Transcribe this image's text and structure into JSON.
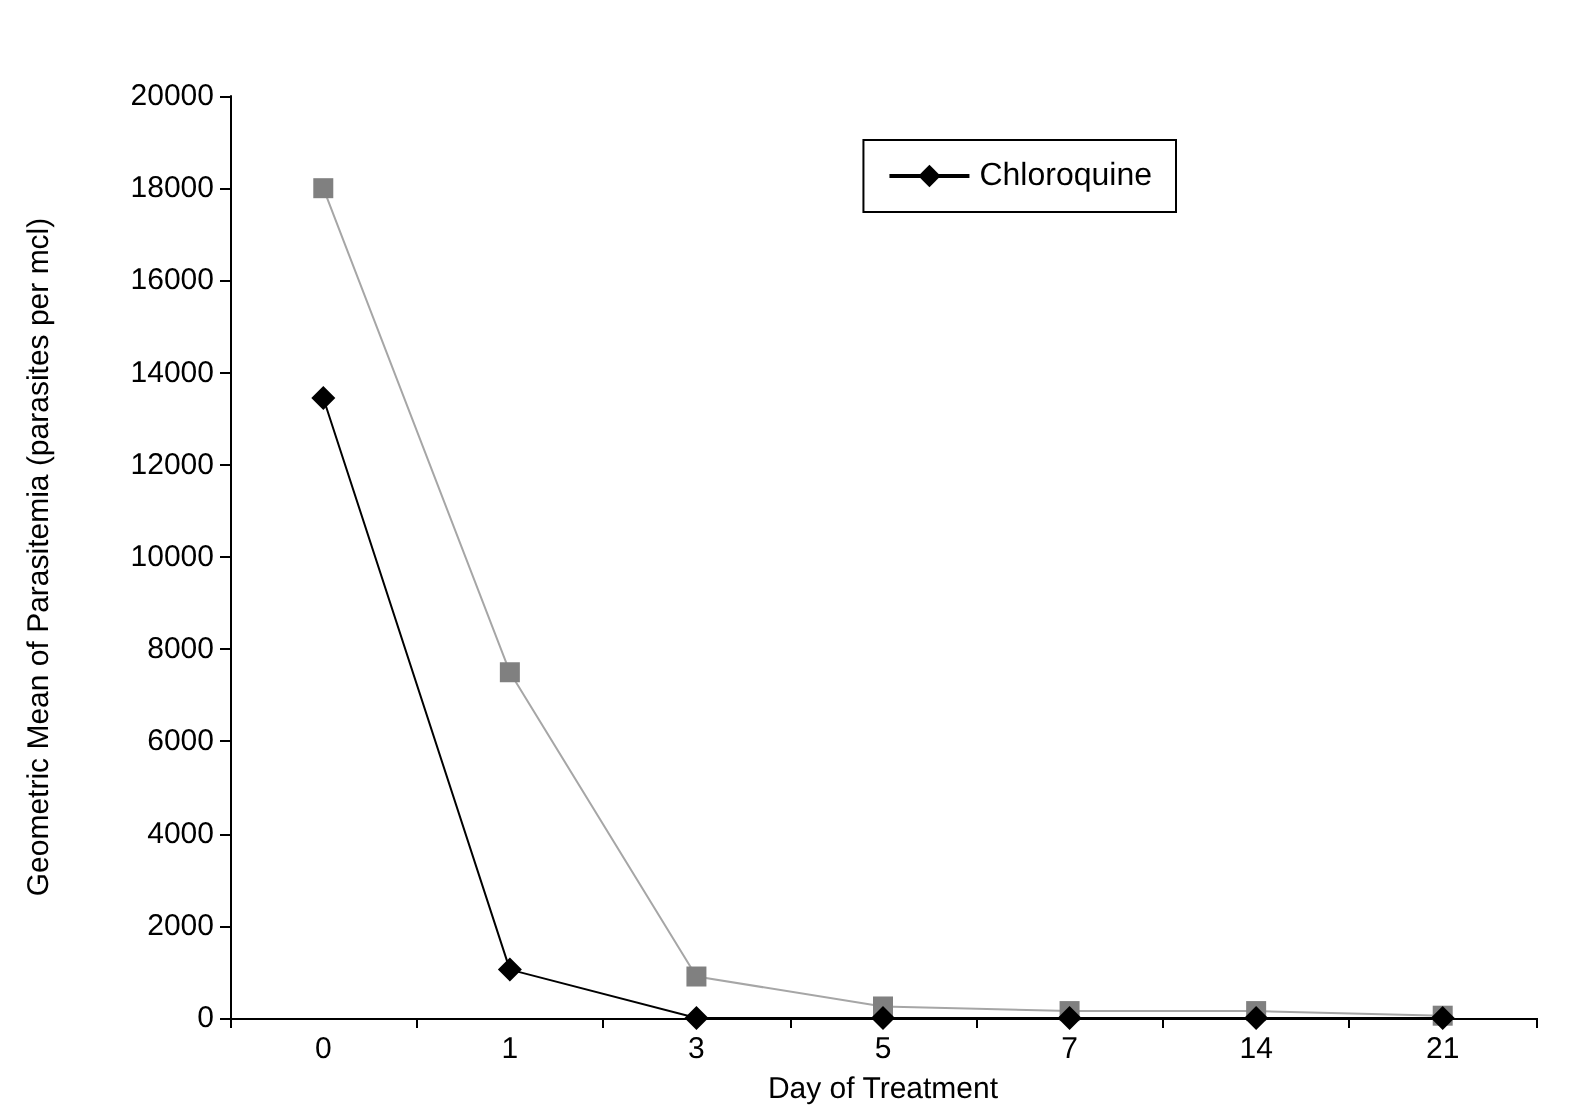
{
  "chart_data": {
    "type": "line",
    "xlabel": "Day of Treatment",
    "ylabel": "Geometric Mean of Parasitemia (parasites per mcl)",
    "categories": [
      "0",
      "1",
      "3",
      "5",
      "7",
      "14",
      "21"
    ],
    "series": [
      {
        "color": "#808080",
        "marker": "square",
        "values": [
          18000,
          7500,
          900,
          250,
          150,
          150,
          50
        ]
      },
      {
        "name": "Chloroquine",
        "color": "#000000",
        "marker": "diamond",
        "values": [
          13450,
          1050,
          0,
          0,
          0,
          0,
          0
        ]
      }
    ],
    "ylim": [
      0,
      20000
    ],
    "yticks": [
      0,
      2000,
      4000,
      6000,
      8000,
      10000,
      12000,
      14000,
      16000,
      18000,
      20000
    ],
    "grid": false,
    "legend": "top right",
    "line_style": "solid"
  }
}
